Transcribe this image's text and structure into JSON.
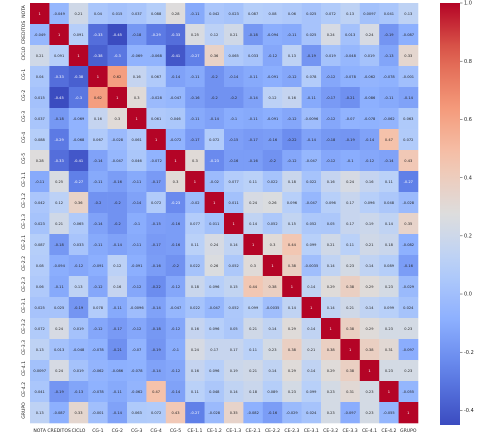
{
  "chart_data": {
    "type": "heatmap",
    "title": "",
    "labels": [
      "NOTA",
      "CREDITOS",
      "CICLO",
      "CG-1",
      "CG-2",
      "CG-3",
      "CG-4",
      "CG-5",
      "CE-1.1",
      "CE-1.2",
      "CE-1.3",
      "CE-2.1",
      "CE-2.2",
      "CE-2.3",
      "CE-3.1",
      "CE-3.2",
      "CE-3.3",
      "CE-4.1",
      "CE-4.2",
      "GRUPO"
    ],
    "matrix": [
      [
        1,
        -0.049,
        0.21,
        0.04,
        0.015,
        0.037,
        0.088,
        0.28,
        -0.11,
        0.042,
        0.023,
        0.087,
        0.08,
        0.06,
        0.025,
        0.072,
        0.13,
        0.0097,
        0.041,
        0.13
      ],
      [
        -0.049,
        1,
        0.091,
        -0.33,
        -0.45,
        -0.18,
        -0.29,
        -0.33,
        0.25,
        0.12,
        0.21,
        -0.18,
        -0.094,
        -0.11,
        0.025,
        0.24,
        0.013,
        0.24,
        -0.19,
        -0.087
      ],
      [
        0.21,
        0.091,
        1,
        -0.38,
        -0.3,
        -0.069,
        -0.068,
        -0.41,
        -0.27,
        0.36,
        0.065,
        0.033,
        -0.12,
        0.13,
        -0.19,
        0.019,
        -0.048,
        0.019,
        -0.13,
        0.33
      ],
      [
        0.04,
        -0.33,
        -0.38,
        1,
        0.62,
        0.16,
        0.067,
        -0.14,
        -0.11,
        -0.2,
        -0.14,
        -0.11,
        -0.091,
        -0.12,
        0.078,
        -0.12,
        -0.078,
        -0.062,
        -0.078,
        -0.001
      ],
      [
        0.015,
        -0.45,
        -0.3,
        0.62,
        1,
        0.3,
        -0.028,
        -0.047,
        -0.16,
        -0.2,
        -0.2,
        -0.14,
        0.12,
        0.16,
        -0.11,
        -0.17,
        -0.21,
        -0.086,
        -0.11,
        -0.14
      ],
      [
        0.037,
        -0.18,
        -0.069,
        0.16,
        0.3,
        1,
        0.061,
        0.046,
        -0.11,
        -0.14,
        -0.1,
        -0.11,
        -0.091,
        -0.12,
        -0.0096,
        -0.12,
        -0.07,
        -0.078,
        -0.062,
        0.063
      ],
      [
        0.088,
        -0.29,
        -0.068,
        0.067,
        -0.028,
        0.061,
        1,
        -0.072,
        -0.17,
        0.072,
        -0.15,
        -0.17,
        -0.16,
        -0.22,
        -0.14,
        -0.18,
        -0.19,
        -0.14,
        0.47,
        0.072
      ],
      [
        0.28,
        -0.33,
        -0.41,
        -0.14,
        -0.047,
        0.046,
        -0.072,
        1,
        0.3,
        -0.23,
        -0.16,
        -0.16,
        -0.2,
        -0.12,
        -0.047,
        -0.12,
        -0.1,
        -0.12,
        -0.14,
        0.43
      ],
      [
        -0.11,
        0.25,
        -0.27,
        -0.11,
        -0.16,
        -0.11,
        -0.17,
        0.3,
        1,
        -0.02,
        0.077,
        0.11,
        0.022,
        0.18,
        0.022,
        0.16,
        0.24,
        0.16,
        0.11,
        -0.27
      ],
      [
        0.042,
        0.12,
        0.36,
        -0.2,
        -0.2,
        -0.14,
        0.072,
        -0.23,
        -0.02,
        1,
        0.011,
        0.24,
        0.26,
        0.096,
        -0.047,
        0.096,
        0.17,
        0.096,
        0.048,
        -0.028
      ],
      [
        0.023,
        0.21,
        0.065,
        -0.14,
        -0.2,
        -0.1,
        -0.15,
        -0.16,
        0.077,
        0.011,
        1,
        0.14,
        0.052,
        0.15,
        0.052,
        0.05,
        0.17,
        0.19,
        0.14,
        0.35
      ],
      [
        0.087,
        -0.18,
        0.033,
        -0.11,
        -0.14,
        -0.11,
        -0.17,
        -0.16,
        0.11,
        0.24,
        0.14,
        1,
        0.3,
        0.44,
        0.099,
        0.21,
        0.11,
        0.21,
        0.18,
        -0.082
      ],
      [
        0.08,
        -0.094,
        -0.12,
        -0.091,
        0.12,
        -0.091,
        -0.16,
        -0.2,
        0.022,
        0.26,
        0.052,
        0.3,
        1,
        0.38,
        -0.0035,
        0.14,
        0.23,
        0.14,
        0.089,
        -0.16
      ],
      [
        0.06,
        -0.11,
        0.13,
        -0.12,
        0.16,
        -0.12,
        -0.22,
        -0.12,
        0.18,
        0.096,
        0.15,
        0.44,
        0.38,
        1,
        0.14,
        0.29,
        0.38,
        0.29,
        0.23,
        -0.029
      ],
      [
        0.025,
        0.025,
        -0.19,
        0.078,
        -0.11,
        -0.0096,
        -0.14,
        -0.047,
        0.022,
        -0.047,
        0.052,
        0.099,
        -0.0035,
        0.14,
        1,
        0.14,
        0.21,
        0.14,
        0.099,
        0.024
      ],
      [
        0.072,
        0.24,
        0.019,
        -0.12,
        -0.17,
        -0.12,
        -0.18,
        -0.12,
        0.16,
        0.096,
        0.05,
        0.21,
        0.14,
        0.29,
        0.14,
        1,
        0.38,
        0.29,
        0.23,
        0.23
      ],
      [
        0.13,
        0.013,
        -0.048,
        -0.078,
        -0.21,
        -0.07,
        -0.19,
        -0.1,
        0.24,
        0.17,
        0.17,
        0.11,
        0.23,
        0.38,
        0.21,
        0.38,
        1,
        0.38,
        0.31,
        -0.097
      ],
      [
        0.0097,
        0.24,
        0.019,
        -0.062,
        -0.086,
        -0.078,
        -0.14,
        -0.12,
        0.16,
        0.096,
        0.19,
        0.21,
        0.14,
        0.29,
        0.14,
        0.29,
        0.38,
        1,
        0.23,
        0.23
      ],
      [
        0.041,
        -0.19,
        -0.13,
        -0.078,
        -0.11,
        -0.062,
        0.47,
        -0.14,
        0.11,
        0.048,
        0.14,
        0.18,
        0.089,
        0.23,
        0.099,
        0.23,
        0.31,
        0.23,
        1,
        -0.055
      ],
      [
        0.13,
        -0.087,
        0.33,
        -0.001,
        -0.14,
        0.063,
        0.072,
        0.43,
        -0.27,
        -0.028,
        0.35,
        -0.082,
        -0.16,
        -0.029,
        0.024,
        0.23,
        -0.097,
        0.23,
        -0.055,
        1
      ]
    ],
    "colormap": "coolwarm",
    "vmin": -0.45,
    "vmax": 1,
    "colorbar_ticks": [
      "1.0",
      "0.8",
      "0.6",
      "0.4",
      "0.2",
      "0.0",
      "-0.2",
      "-0.4"
    ],
    "colorbar_tick_values": [
      1.0,
      0.8,
      0.6,
      0.4,
      0.2,
      0.0,
      -0.2,
      -0.4
    ],
    "colors": {
      "low": "#3b4cc0",
      "mid": "#dddddd",
      "high": "#b40426"
    }
  }
}
